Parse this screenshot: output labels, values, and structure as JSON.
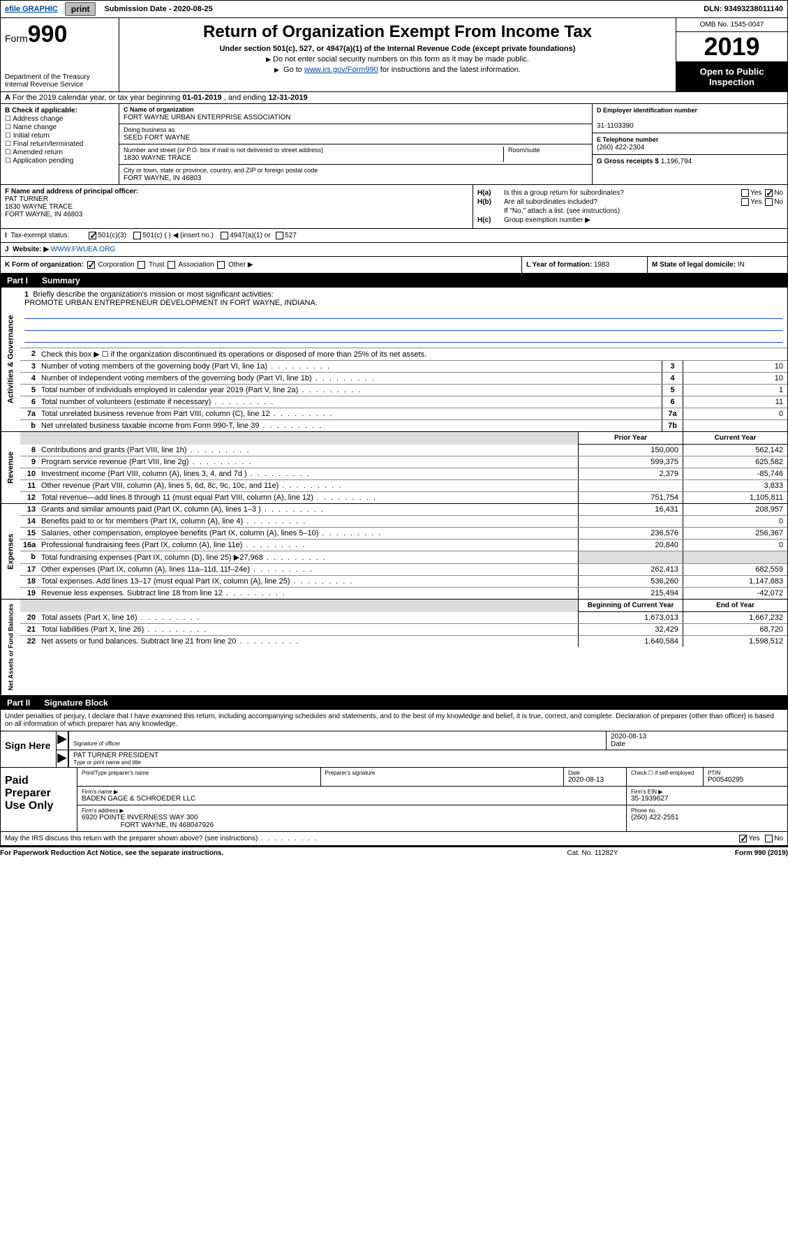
{
  "topbar": {
    "efile": "efile GRAPHIC",
    "print": "print",
    "sub_label": "Submission Date - ",
    "sub_date": "2020-08-25",
    "dln_label": "DLN: ",
    "dln": "93493238011140"
  },
  "header": {
    "form_prefix": "Form",
    "form_num": "990",
    "dept": "Department of the Treasury\nInternal Revenue Service",
    "title": "Return of Organization Exempt From Income Tax",
    "subtitle": "Under section 501(c), 527, or 4947(a)(1) of the Internal Revenue Code (except private foundations)",
    "note1": "Do not enter social security numbers on this form as it may be made public.",
    "note2_pre": "Go to ",
    "note2_link": "www.irs.gov/Form990",
    "note2_post": " for instructions and the latest information.",
    "omb": "OMB No. 1545-0047",
    "year": "2019",
    "open": "Open to Public Inspection"
  },
  "row_a": {
    "text": "For the 2019 calendar year, or tax year beginning ",
    "begin": "01-01-2019",
    "mid": " , and ending ",
    "end": "12-31-2019"
  },
  "col_b": {
    "hdr": "B Check if applicable:",
    "opts": [
      "Address change",
      "Name change",
      "Initial return",
      "Final return/terminated",
      "Amended return",
      "Application pending"
    ]
  },
  "col_c": {
    "name_lbl": "C Name of organization",
    "name": "FORT WAYNE URBAN ENTERPRISE ASSOCIATION",
    "dba_lbl": "Doing business as",
    "dba": "SEED FORT WAYNE",
    "addr_lbl": "Number and street (or P.O. box if mail is not delivered to street address)",
    "room_lbl": "Room/suite",
    "addr": "1830 WAYNE TRACE",
    "city_lbl": "City or town, state or province, country, and ZIP or foreign postal code",
    "city": "FORT WAYNE, IN  46803"
  },
  "col_d": {
    "ein_lbl": "D Employer identification number",
    "ein": "31-1103390",
    "tel_lbl": "E Telephone number",
    "tel": "(260) 422-2304",
    "gross_lbl": "G Gross receipts $ ",
    "gross": "1,196,794"
  },
  "sec_f": {
    "lbl": "F  Name and address of principal officer:",
    "name": "PAT TURNER",
    "addr1": "1830 WAYNE TRACE",
    "addr2": "FORT WAYNE, IN  46803"
  },
  "sec_h": {
    "ha_lbl": "H(a)",
    "ha_txt": "Is this a group return for subordinates?",
    "hb_lbl": "H(b)",
    "hb_txt": "Are all subordinates included?",
    "hb_note": "If \"No,\" attach a list. (see instructions)",
    "hc_lbl": "H(c)",
    "hc_txt": "Group exemption number ▶"
  },
  "row_i": {
    "lbl": "Tax-exempt status:",
    "opts": [
      "501(c)(3)",
      "501(c) (  ) ◀ (insert no.)",
      "4947(a)(1) or",
      "527"
    ]
  },
  "row_j": {
    "lbl": "J",
    "web_lbl": "Website: ▶ ",
    "web": "WWW.FWUEA.ORG"
  },
  "row_klm": {
    "k_lbl": "K Form of organization:",
    "k_opts": [
      "Corporation",
      "Trust",
      "Association",
      "Other ▶"
    ],
    "l_lbl": "L Year of formation: ",
    "l_val": "1983",
    "m_lbl": "M State of legal domicile: ",
    "m_val": "IN"
  },
  "part1": {
    "num": "Part I",
    "title": "Summary"
  },
  "mission": {
    "num": "1",
    "lbl": "Briefly describe the organization's mission or most significant activities:",
    "text": "PROMOTE URBAN ENTREPRENEUR DEVELOPMENT IN FORT WAYNE, INDIANA."
  },
  "governance": {
    "label": "Activities & Governance",
    "line2": "Check this box ▶ ☐  if the organization discontinued its operations or disposed of more than 25% of its net assets.",
    "lines": [
      {
        "n": "3",
        "d": "Number of voting members of the governing body (Part VI, line 1a)",
        "box": "3",
        "v": "10"
      },
      {
        "n": "4",
        "d": "Number of independent voting members of the governing body (Part VI, line 1b)",
        "box": "4",
        "v": "10"
      },
      {
        "n": "5",
        "d": "Total number of individuals employed in calendar year 2019 (Part V, line 2a)",
        "box": "5",
        "v": "1"
      },
      {
        "n": "6",
        "d": "Total number of volunteers (estimate if necessary)",
        "box": "6",
        "v": "11"
      },
      {
        "n": "7a",
        "d": "Total unrelated business revenue from Part VIII, column (C), line 12",
        "box": "7a",
        "v": "0"
      },
      {
        "n": "b",
        "d": "Net unrelated business taxable income from Form 990-T, line 39",
        "box": "7b",
        "v": ""
      }
    ]
  },
  "revenue": {
    "label": "Revenue",
    "hdr_prior": "Prior Year",
    "hdr_curr": "Current Year",
    "lines": [
      {
        "n": "8",
        "d": "Contributions and grants (Part VIII, line 1h)",
        "p": "150,000",
        "c": "562,142"
      },
      {
        "n": "9",
        "d": "Program service revenue (Part VIII, line 2g)",
        "p": "599,375",
        "c": "625,582"
      },
      {
        "n": "10",
        "d": "Investment income (Part VIII, column (A), lines 3, 4, and 7d )",
        "p": "2,379",
        "c": "-85,746"
      },
      {
        "n": "11",
        "d": "Other revenue (Part VIII, column (A), lines 5, 6d, 8c, 9c, 10c, and 11e)",
        "p": "",
        "c": "3,833"
      },
      {
        "n": "12",
        "d": "Total revenue—add lines 8 through 11 (must equal Part VIII, column (A), line 12)",
        "p": "751,754",
        "c": "1,105,811"
      }
    ]
  },
  "expenses": {
    "label": "Expenses",
    "lines": [
      {
        "n": "13",
        "d": "Grants and similar amounts paid (Part IX, column (A), lines 1–3 )",
        "p": "16,431",
        "c": "208,957"
      },
      {
        "n": "14",
        "d": "Benefits paid to or for members (Part IX, column (A), line 4)",
        "p": "",
        "c": "0"
      },
      {
        "n": "15",
        "d": "Salaries, other compensation, employee benefits (Part IX, column (A), lines 5–10)",
        "p": "236,576",
        "c": "256,367"
      },
      {
        "n": "16a",
        "d": "Professional fundraising fees (Part IX, column (A), line 11e)",
        "p": "20,840",
        "c": "0"
      },
      {
        "n": "b",
        "d": "Total fundraising expenses (Part IX, column (D), line 25) ▶27,968",
        "p": "__shade__",
        "c": "__shade__"
      },
      {
        "n": "17",
        "d": "Other expenses (Part IX, column (A), lines 11a–11d, 11f–24e)",
        "p": "262,413",
        "c": "682,559"
      },
      {
        "n": "18",
        "d": "Total expenses. Add lines 13–17 (must equal Part IX, column (A), line 25)",
        "p": "536,260",
        "c": "1,147,883"
      },
      {
        "n": "19",
        "d": "Revenue less expenses. Subtract line 18 from line 12",
        "p": "215,494",
        "c": "-42,072"
      }
    ]
  },
  "netassets": {
    "label": "Net Assets or Fund Balances",
    "hdr_begin": "Beginning of Current Year",
    "hdr_end": "End of Year",
    "lines": [
      {
        "n": "20",
        "d": "Total assets (Part X, line 16)",
        "p": "1,673,013",
        "c": "1,667,232"
      },
      {
        "n": "21",
        "d": "Total liabilities (Part X, line 26)",
        "p": "32,429",
        "c": "68,720"
      },
      {
        "n": "22",
        "d": "Net assets or fund balances. Subtract line 21 from line 20",
        "p": "1,640,584",
        "c": "1,598,512"
      }
    ]
  },
  "part2": {
    "num": "Part II",
    "title": "Signature Block"
  },
  "sig": {
    "decl": "Under penalties of perjury, I declare that I have examined this return, including accompanying schedules and statements, and to the best of my knowledge and belief, it is true, correct, and complete. Declaration of preparer (other than officer) is based on all information of which preparer has any knowledge.",
    "sign_here": "Sign Here",
    "sig_officer": "Signature of officer",
    "date": "2020-08-13",
    "date_lbl": "Date",
    "officer_name": "PAT TURNER  PRESIDENT",
    "type_name_lbl": "Type or print name and title"
  },
  "prep": {
    "lbl": "Paid Preparer Use Only",
    "r1": {
      "c1_lbl": "Print/Type preparer's name",
      "c1": "",
      "c2_lbl": "Preparer's signature",
      "c2": "",
      "c3_lbl": "Date",
      "c3": "2020-08-13",
      "c4_lbl": "Check ☐ if self-employed",
      "c5_lbl": "PTIN",
      "c5": "P00540295"
    },
    "r2": {
      "c1_lbl": "Firm's name     ▶",
      "c1": "BADEN GAGE & SCHROEDER LLC",
      "c2_lbl": "Firm's EIN ▶",
      "c2": "35-1939627"
    },
    "r3": {
      "c1_lbl": "Firm's address ▶",
      "c1": "6920 POINTE INVERNESS WAY 300",
      "c1b": "FORT WAYNE, IN  468047926",
      "c2_lbl": "Phone no. ",
      "c2": "(260) 422-2551"
    }
  },
  "bottom": {
    "q": "May the IRS discuss this return with the preparer shown above? (see instructions)",
    "yes": "Yes",
    "no": "No"
  },
  "footer": {
    "f1": "For Paperwork Reduction Act Notice, see the separate instructions.",
    "f2": "Cat. No. 11282Y",
    "f3": "Form 990 (2019)"
  },
  "colors": {
    "link": "#0048a0",
    "underline": "#2050d0",
    "shade": "#dddddd",
    "black": "#000000"
  }
}
